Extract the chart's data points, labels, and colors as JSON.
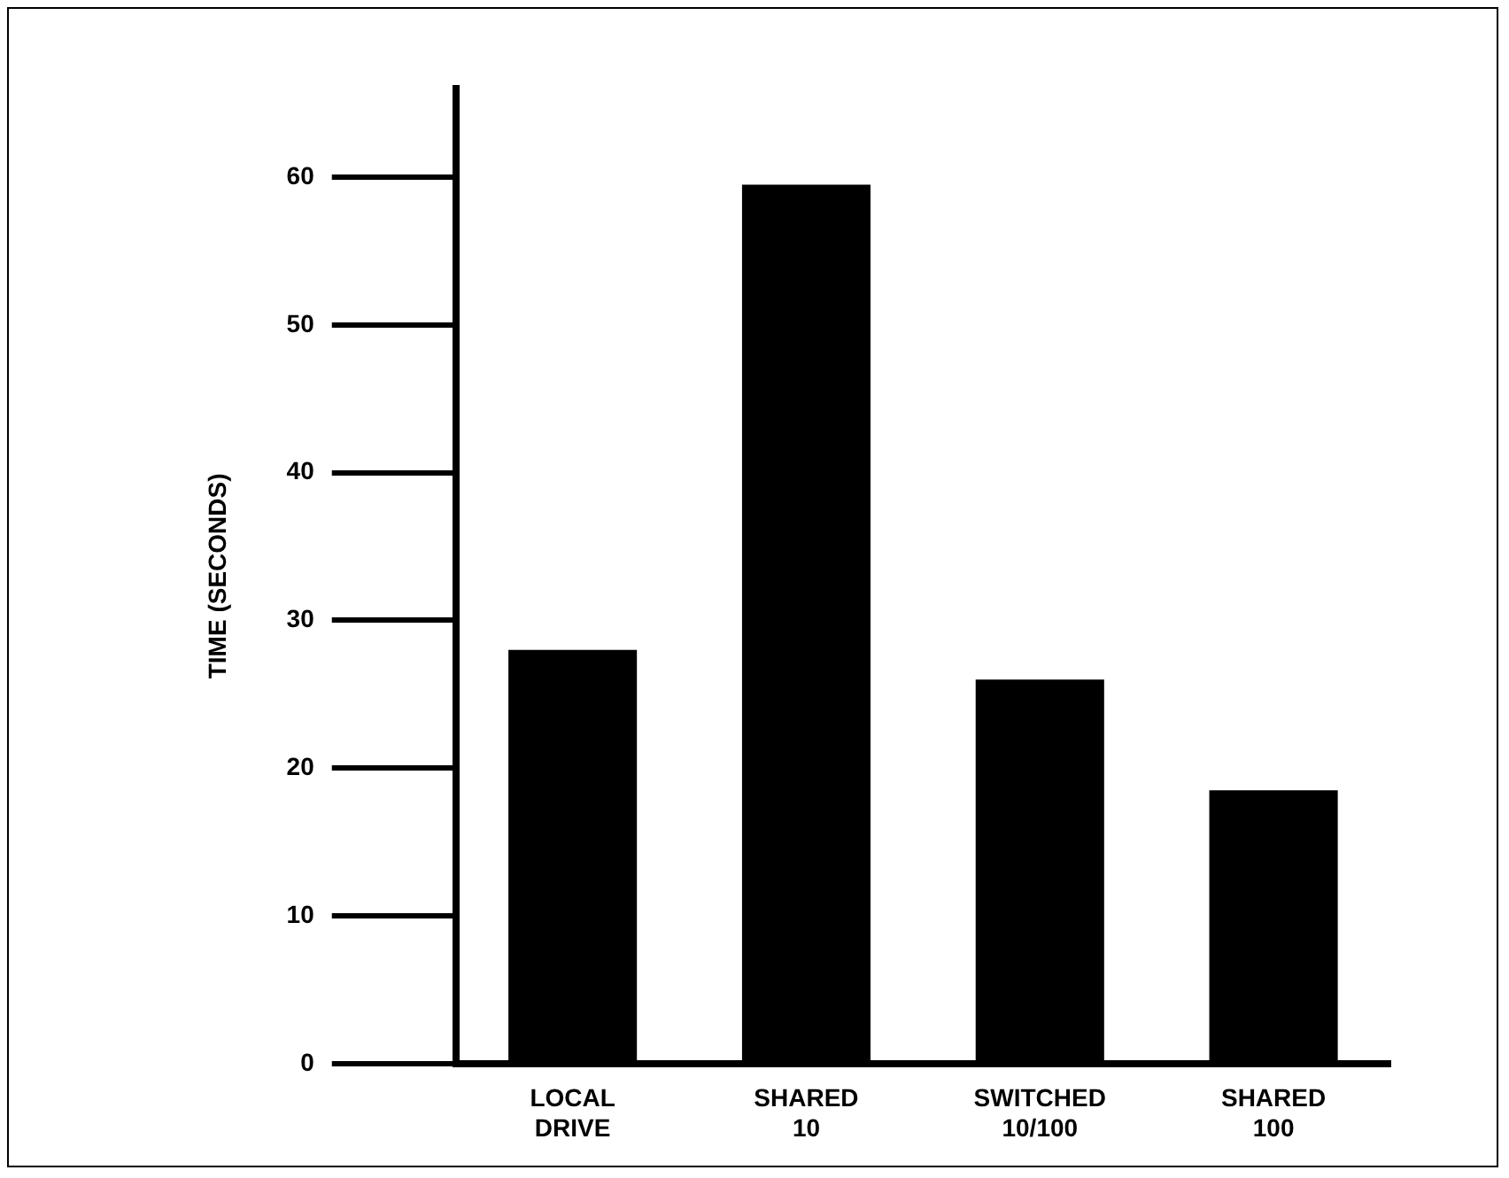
{
  "chart_data": {
    "type": "bar",
    "ylabel": "TIME (SECONDS)",
    "categories": [
      "LOCAL DRIVE",
      "SHARED 10",
      "SWITCHED 10/100",
      "SHARED 100"
    ],
    "values": [
      28,
      59.5,
      26,
      18.5
    ],
    "color": "#000000",
    "ylim": [
      0,
      66
    ],
    "yticks": [
      0,
      10,
      20,
      30,
      40,
      50,
      60
    ],
    "grid": false
  }
}
